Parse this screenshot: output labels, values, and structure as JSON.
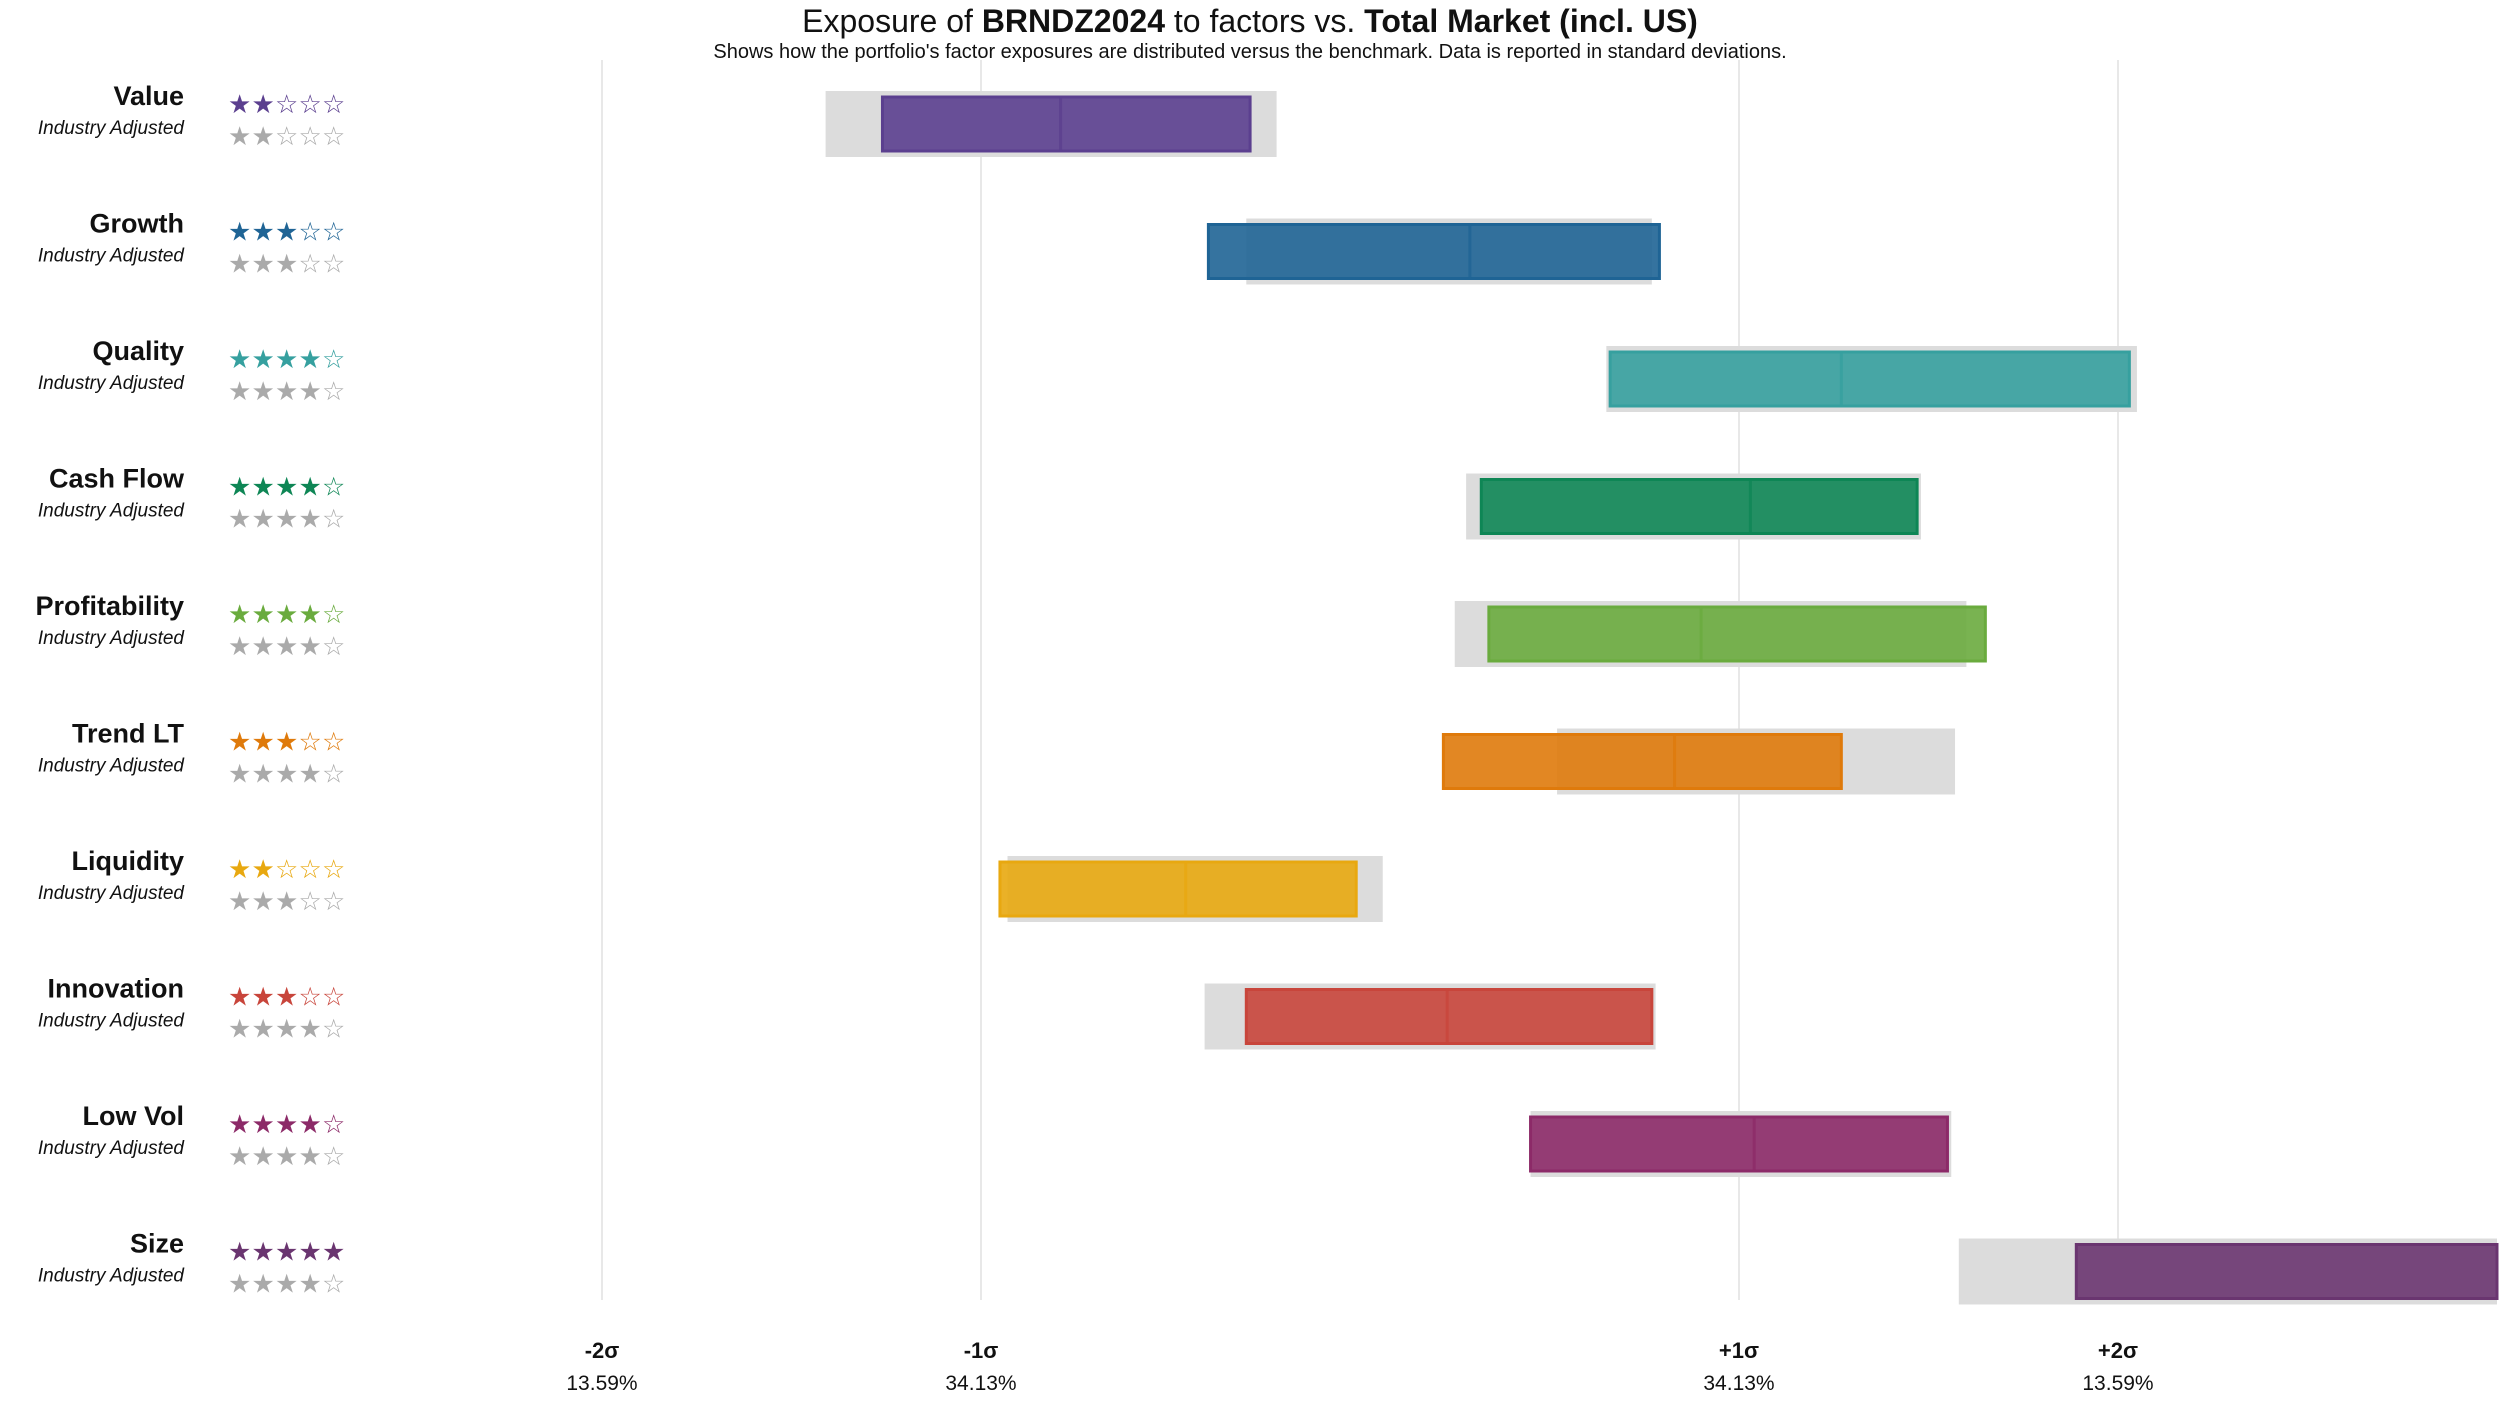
{
  "title": {
    "prefix": "Exposure of ",
    "portfolio": "BRNDZ2024",
    "middle": " to factors vs. ",
    "benchmark": "Total Market (incl. US)"
  },
  "subtitle": "Shows how the portfolio's factor exposures are distributed versus the benchmark. Data is reported in standard deviations.",
  "sub_label": "Industry Adjusted",
  "colors": {
    "benchmark_band": "#dcdcdc",
    "gridline": "#e8e8e8",
    "industry_stars": "#aaaaaa"
  },
  "chart_data": {
    "type": "bar",
    "subtype": "floating-range",
    "unit": "standard deviations",
    "x_range": [
      -3.0,
      3.0
    ],
    "x_ticks": [
      {
        "value": -2,
        "label": "-2σ",
        "pct": "13.59%"
      },
      {
        "value": -1,
        "label": "-1σ",
        "pct": "34.13%"
      },
      {
        "value": 1,
        "label": "+1σ",
        "pct": "34.13%"
      },
      {
        "value": 2,
        "label": "+2σ",
        "pct": "13.59%"
      }
    ],
    "factors": [
      {
        "name": "Value",
        "color": "#5b3f8f",
        "stars": 2,
        "industry_stars": 2,
        "benchmark": [
          -1.41,
          -0.22
        ],
        "portfolio": [
          -1.26,
          -0.29
        ],
        "median": -0.79
      },
      {
        "name": "Growth",
        "color": "#1f6495",
        "stars": 3,
        "industry_stars": 3,
        "benchmark": [
          -0.3,
          0.77
        ],
        "portfolio": [
          -0.4,
          0.79
        ],
        "median": 0.29
      },
      {
        "name": "Quality",
        "color": "#36a09f",
        "stars": 4,
        "industry_stars": 4,
        "benchmark": [
          0.65,
          2.05
        ],
        "portfolio": [
          0.66,
          2.03
        ],
        "median": 1.27
      },
      {
        "name": "Cash Flow",
        "color": "#0e8655",
        "stars": 4,
        "industry_stars": 4,
        "benchmark": [
          0.28,
          1.48
        ],
        "portfolio": [
          0.32,
          1.47
        ],
        "median": 1.03
      },
      {
        "name": "Profitability",
        "color": "#6aab3e",
        "stars": 4,
        "industry_stars": 4,
        "benchmark": [
          0.25,
          1.6
        ],
        "portfolio": [
          0.34,
          1.65
        ],
        "median": 0.9
      },
      {
        "name": "Trend LT",
        "color": "#df7a0b",
        "stars": 3,
        "industry_stars": 4,
        "benchmark": [
          0.52,
          1.57
        ],
        "portfolio": [
          0.22,
          1.27
        ],
        "median": 0.83
      },
      {
        "name": "Liquidity",
        "color": "#e8a810",
        "stars": 2,
        "industry_stars": 3,
        "benchmark": [
          -0.93,
          0.06
        ],
        "portfolio": [
          -0.95,
          -0.01
        ],
        "median": -0.46
      },
      {
        "name": "Innovation",
        "color": "#c8453b",
        "stars": 3,
        "industry_stars": 4,
        "benchmark": [
          -0.41,
          0.78
        ],
        "portfolio": [
          -0.3,
          0.77
        ],
        "median": 0.23
      },
      {
        "name": "Low Vol",
        "color": "#8c2a68",
        "stars": 4,
        "industry_stars": 4,
        "benchmark": [
          0.45,
          1.56
        ],
        "portfolio": [
          0.45,
          1.55
        ],
        "median": 1.04
      },
      {
        "name": "Size",
        "color": "#6a3570",
        "stars": 5,
        "industry_stars": 4,
        "benchmark": [
          1.58,
          3.0
        ],
        "portfolio": [
          1.89,
          3.0
        ],
        "median": null
      }
    ]
  }
}
